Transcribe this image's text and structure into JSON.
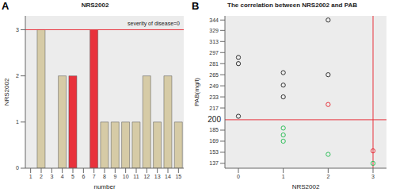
{
  "chart_data": [
    {
      "type": "bar",
      "panel_label": "A",
      "title": "NRS2002",
      "x_label": "number",
      "y_label": "NRS2002",
      "categories": [
        "1",
        "2",
        "3",
        "4",
        "5",
        "6",
        "7",
        "8",
        "9",
        "10",
        "11",
        "12",
        "13",
        "14",
        "15"
      ],
      "values": [
        0,
        3,
        0,
        2,
        2,
        0,
        3,
        1,
        1,
        1,
        1,
        2,
        1,
        2,
        1
      ],
      "colors": [
        "#d6cba6",
        "#d6cba6",
        "#d6cba6",
        "#d6cba6",
        "#e8323c",
        "#d6cba6",
        "#e8323c",
        "#d6cba6",
        "#d6cba6",
        "#d6cba6",
        "#d6cba6",
        "#d6cba6",
        "#d6cba6",
        "#d6cba6",
        "#d6cba6"
      ],
      "ylim": [
        0,
        3.3
      ],
      "yticks": [
        0,
        1,
        2,
        3
      ],
      "grid": false,
      "reference_lines": [
        {
          "axis": "y",
          "value": 3,
          "label": "severity of disease=0",
          "color": "#e8323c"
        }
      ]
    },
    {
      "type": "scatter",
      "panel_label": "B",
      "title": "The correlation between NRS2002 and PAB",
      "x_label": "NRS2002",
      "y_label": "PAB(mg/l)",
      "xlim": [
        -0.3,
        3.3
      ],
      "xticks": [
        0,
        1,
        2,
        3
      ],
      "ylim": [
        130,
        350
      ],
      "yticks": [
        137,
        153,
        169,
        185,
        217,
        233,
        249,
        265,
        281,
        297,
        313,
        329,
        344
      ],
      "grid": false,
      "series": [
        {
          "color": "#333333",
          "marker": "circle",
          "x": [
            0,
            0,
            0,
            1,
            1,
            1,
            2,
            2
          ],
          "values": [
            290,
            281,
            205,
            268,
            250,
            233,
            344,
            265
          ]
        },
        {
          "color": "#e8323c",
          "marker": "circle",
          "x": [
            2,
            3
          ],
          "values": [
            222,
            155
          ]
        },
        {
          "color": "#2fbf5a",
          "marker": "circle",
          "x": [
            1,
            1,
            1,
            2,
            3
          ],
          "values": [
            188,
            178,
            169,
            150,
            137
          ]
        }
      ],
      "reference_lines": [
        {
          "axis": "x",
          "value": 3,
          "color": "#e8323c"
        },
        {
          "axis": "y",
          "value": 200,
          "label": "200",
          "color": "#e8323c"
        }
      ]
    }
  ]
}
